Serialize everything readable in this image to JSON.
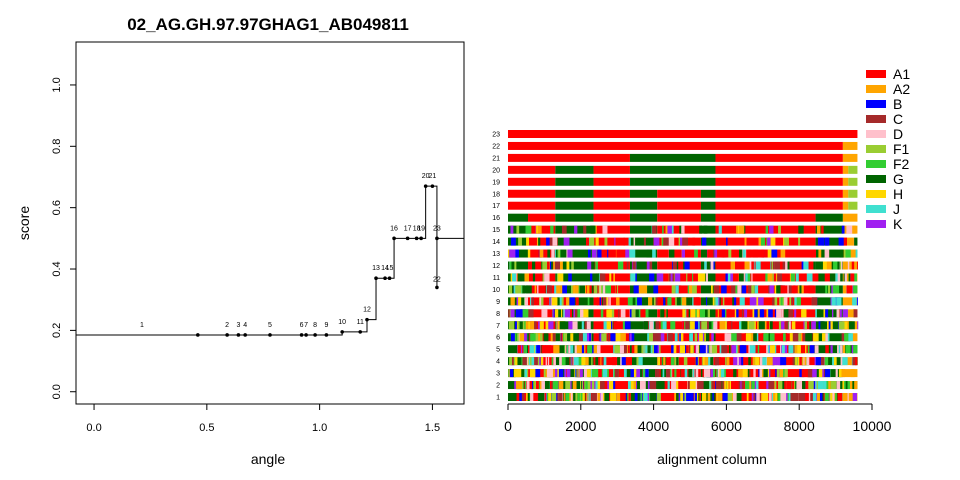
{
  "chart_data": [
    {
      "type": "step-scatter",
      "title": "02_AG.GH.97.97GHAG1_AB049811",
      "xlabel": "angle",
      "ylabel": "score",
      "xlim": [
        -0.08,
        1.64
      ],
      "ylim": [
        -0.04,
        1.14
      ],
      "xticks": [
        "0.0",
        "0.5",
        "1.0",
        "1.5"
      ],
      "yticks": [
        "0.0",
        "0.2",
        "0.4",
        "0.6",
        "0.8",
        "1.0"
      ],
      "points": [
        {
          "label": "1",
          "x": 0.46,
          "y": 0.185
        },
        {
          "label": "2",
          "x": 0.59,
          "y": 0.185
        },
        {
          "label": "3",
          "x": 0.64,
          "y": 0.185
        },
        {
          "label": "4",
          "x": 0.67,
          "y": 0.185
        },
        {
          "label": "5",
          "x": 0.78,
          "y": 0.185
        },
        {
          "label": "6",
          "x": 0.92,
          "y": 0.185
        },
        {
          "label": "7",
          "x": 0.94,
          "y": 0.185
        },
        {
          "label": "8",
          "x": 0.98,
          "y": 0.185
        },
        {
          "label": "9",
          "x": 1.03,
          "y": 0.185
        },
        {
          "label": "10",
          "x": 1.1,
          "y": 0.195
        },
        {
          "label": "11",
          "x": 1.18,
          "y": 0.195
        },
        {
          "label": "12",
          "x": 1.21,
          "y": 0.235
        },
        {
          "label": "13",
          "x": 1.25,
          "y": 0.37
        },
        {
          "label": "14",
          "x": 1.29,
          "y": 0.37
        },
        {
          "label": "15",
          "x": 1.31,
          "y": 0.37
        },
        {
          "label": "16",
          "x": 1.33,
          "y": 0.5
        },
        {
          "label": "17",
          "x": 1.39,
          "y": 0.5
        },
        {
          "label": "18",
          "x": 1.43,
          "y": 0.5
        },
        {
          "label": "19",
          "x": 1.45,
          "y": 0.5
        },
        {
          "label": "20",
          "x": 1.47,
          "y": 0.67
        },
        {
          "label": "21",
          "x": 1.5,
          "y": 0.67
        },
        {
          "label": "22",
          "x": 1.52,
          "y": 0.34
        },
        {
          "label": "23",
          "x": 1.52,
          "y": 0.5
        }
      ]
    },
    {
      "type": "mosaic",
      "xlabel": "alignment column",
      "xlim": [
        0,
        10000
      ],
      "xticks": [
        "0",
        "2000",
        "4000",
        "6000",
        "8000",
        "10000"
      ],
      "row_labels": [
        "1",
        "2",
        "3",
        "4",
        "5",
        "6",
        "7",
        "8",
        "9",
        "10",
        "11",
        "12",
        "13",
        "14",
        "15",
        "16",
        "17",
        "18",
        "19",
        "20",
        "21",
        "22",
        "23"
      ],
      "legend": [
        {
          "name": "A1",
          "color": "#FF0000"
        },
        {
          "name": "A2",
          "color": "#FFA500"
        },
        {
          "name": "B",
          "color": "#0000FF"
        },
        {
          "name": "C",
          "color": "#A52A2A"
        },
        {
          "name": "D",
          "color": "#FFC0CB"
        },
        {
          "name": "F1",
          "color": "#9ACD32"
        },
        {
          "name": "F2",
          "color": "#32CD32"
        },
        {
          "name": "G",
          "color": "#006400"
        },
        {
          "name": "H",
          "color": "#FFD700"
        },
        {
          "name": "J",
          "color": "#40E0D0"
        },
        {
          "name": "K",
          "color": "#A020F0"
        }
      ],
      "rows": [
        {
          "row": "23",
          "segments": [
            [
              0,
              9600,
              "A1"
            ]
          ]
        },
        {
          "row": "22",
          "segments": [
            [
              0,
              9200,
              "A1"
            ],
            [
              9200,
              9600,
              "A2"
            ]
          ]
        },
        {
          "row": "21",
          "segments": [
            [
              0,
              3350,
              "A1"
            ],
            [
              3350,
              5700,
              "G"
            ],
            [
              5700,
              9200,
              "A1"
            ],
            [
              9200,
              9600,
              "A2"
            ]
          ]
        },
        {
          "row": "20",
          "segments": [
            [
              0,
              1300,
              "A1"
            ],
            [
              1300,
              2350,
              "G"
            ],
            [
              2350,
              3350,
              "A1"
            ],
            [
              3350,
              5700,
              "G"
            ],
            [
              5700,
              9200,
              "A1"
            ],
            [
              9200,
              9350,
              "A2"
            ],
            [
              9350,
              9600,
              "F1"
            ]
          ]
        },
        {
          "row": "19",
          "segments": [
            [
              0,
              1300,
              "A1"
            ],
            [
              1300,
              2350,
              "G"
            ],
            [
              2350,
              3350,
              "A1"
            ],
            [
              3350,
              5700,
              "G"
            ],
            [
              5700,
              9200,
              "A1"
            ],
            [
              9200,
              9350,
              "A2"
            ],
            [
              9350,
              9600,
              "F1"
            ]
          ]
        },
        {
          "row": "18",
          "segments": [
            [
              0,
              1300,
              "A1"
            ],
            [
              1300,
              2350,
              "G"
            ],
            [
              2350,
              3350,
              "A1"
            ],
            [
              3350,
              4100,
              "G"
            ],
            [
              4100,
              5300,
              "A1"
            ],
            [
              5300,
              5700,
              "G"
            ],
            [
              5700,
              9200,
              "A1"
            ],
            [
              9200,
              9350,
              "A2"
            ],
            [
              9350,
              9600,
              "F1"
            ]
          ]
        },
        {
          "row": "17",
          "segments": [
            [
              0,
              1300,
              "A1"
            ],
            [
              1300,
              2350,
              "G"
            ],
            [
              2350,
              3350,
              "A1"
            ],
            [
              3350,
              4100,
              "G"
            ],
            [
              4100,
              5300,
              "A1"
            ],
            [
              5300,
              5700,
              "G"
            ],
            [
              5700,
              9200,
              "A1"
            ],
            [
              9200,
              9350,
              "A2"
            ],
            [
              9350,
              9600,
              "F1"
            ]
          ]
        },
        {
          "row": "16",
          "segments": [
            [
              0,
              550,
              "G"
            ],
            [
              550,
              1300,
              "A1"
            ],
            [
              1300,
              2350,
              "G"
            ],
            [
              2350,
              3350,
              "A1"
            ],
            [
              3350,
              4100,
              "G"
            ],
            [
              4100,
              5300,
              "A1"
            ],
            [
              5300,
              5700,
              "G"
            ],
            [
              5700,
              8450,
              "A1"
            ],
            [
              8450,
              9200,
              "G"
            ],
            [
              9200,
              9600,
              "A2"
            ]
          ]
        }
      ],
      "dense_rows": [
        "15",
        "14",
        "13",
        "12",
        "11",
        "10",
        "9",
        "8",
        "7",
        "6",
        "5",
        "4",
        "3",
        "2",
        "1"
      ],
      "dense_palette": [
        "A1",
        "G",
        "A2",
        "F1",
        "B",
        "H",
        "K",
        "C",
        "J",
        "D",
        "F2"
      ]
    }
  ]
}
